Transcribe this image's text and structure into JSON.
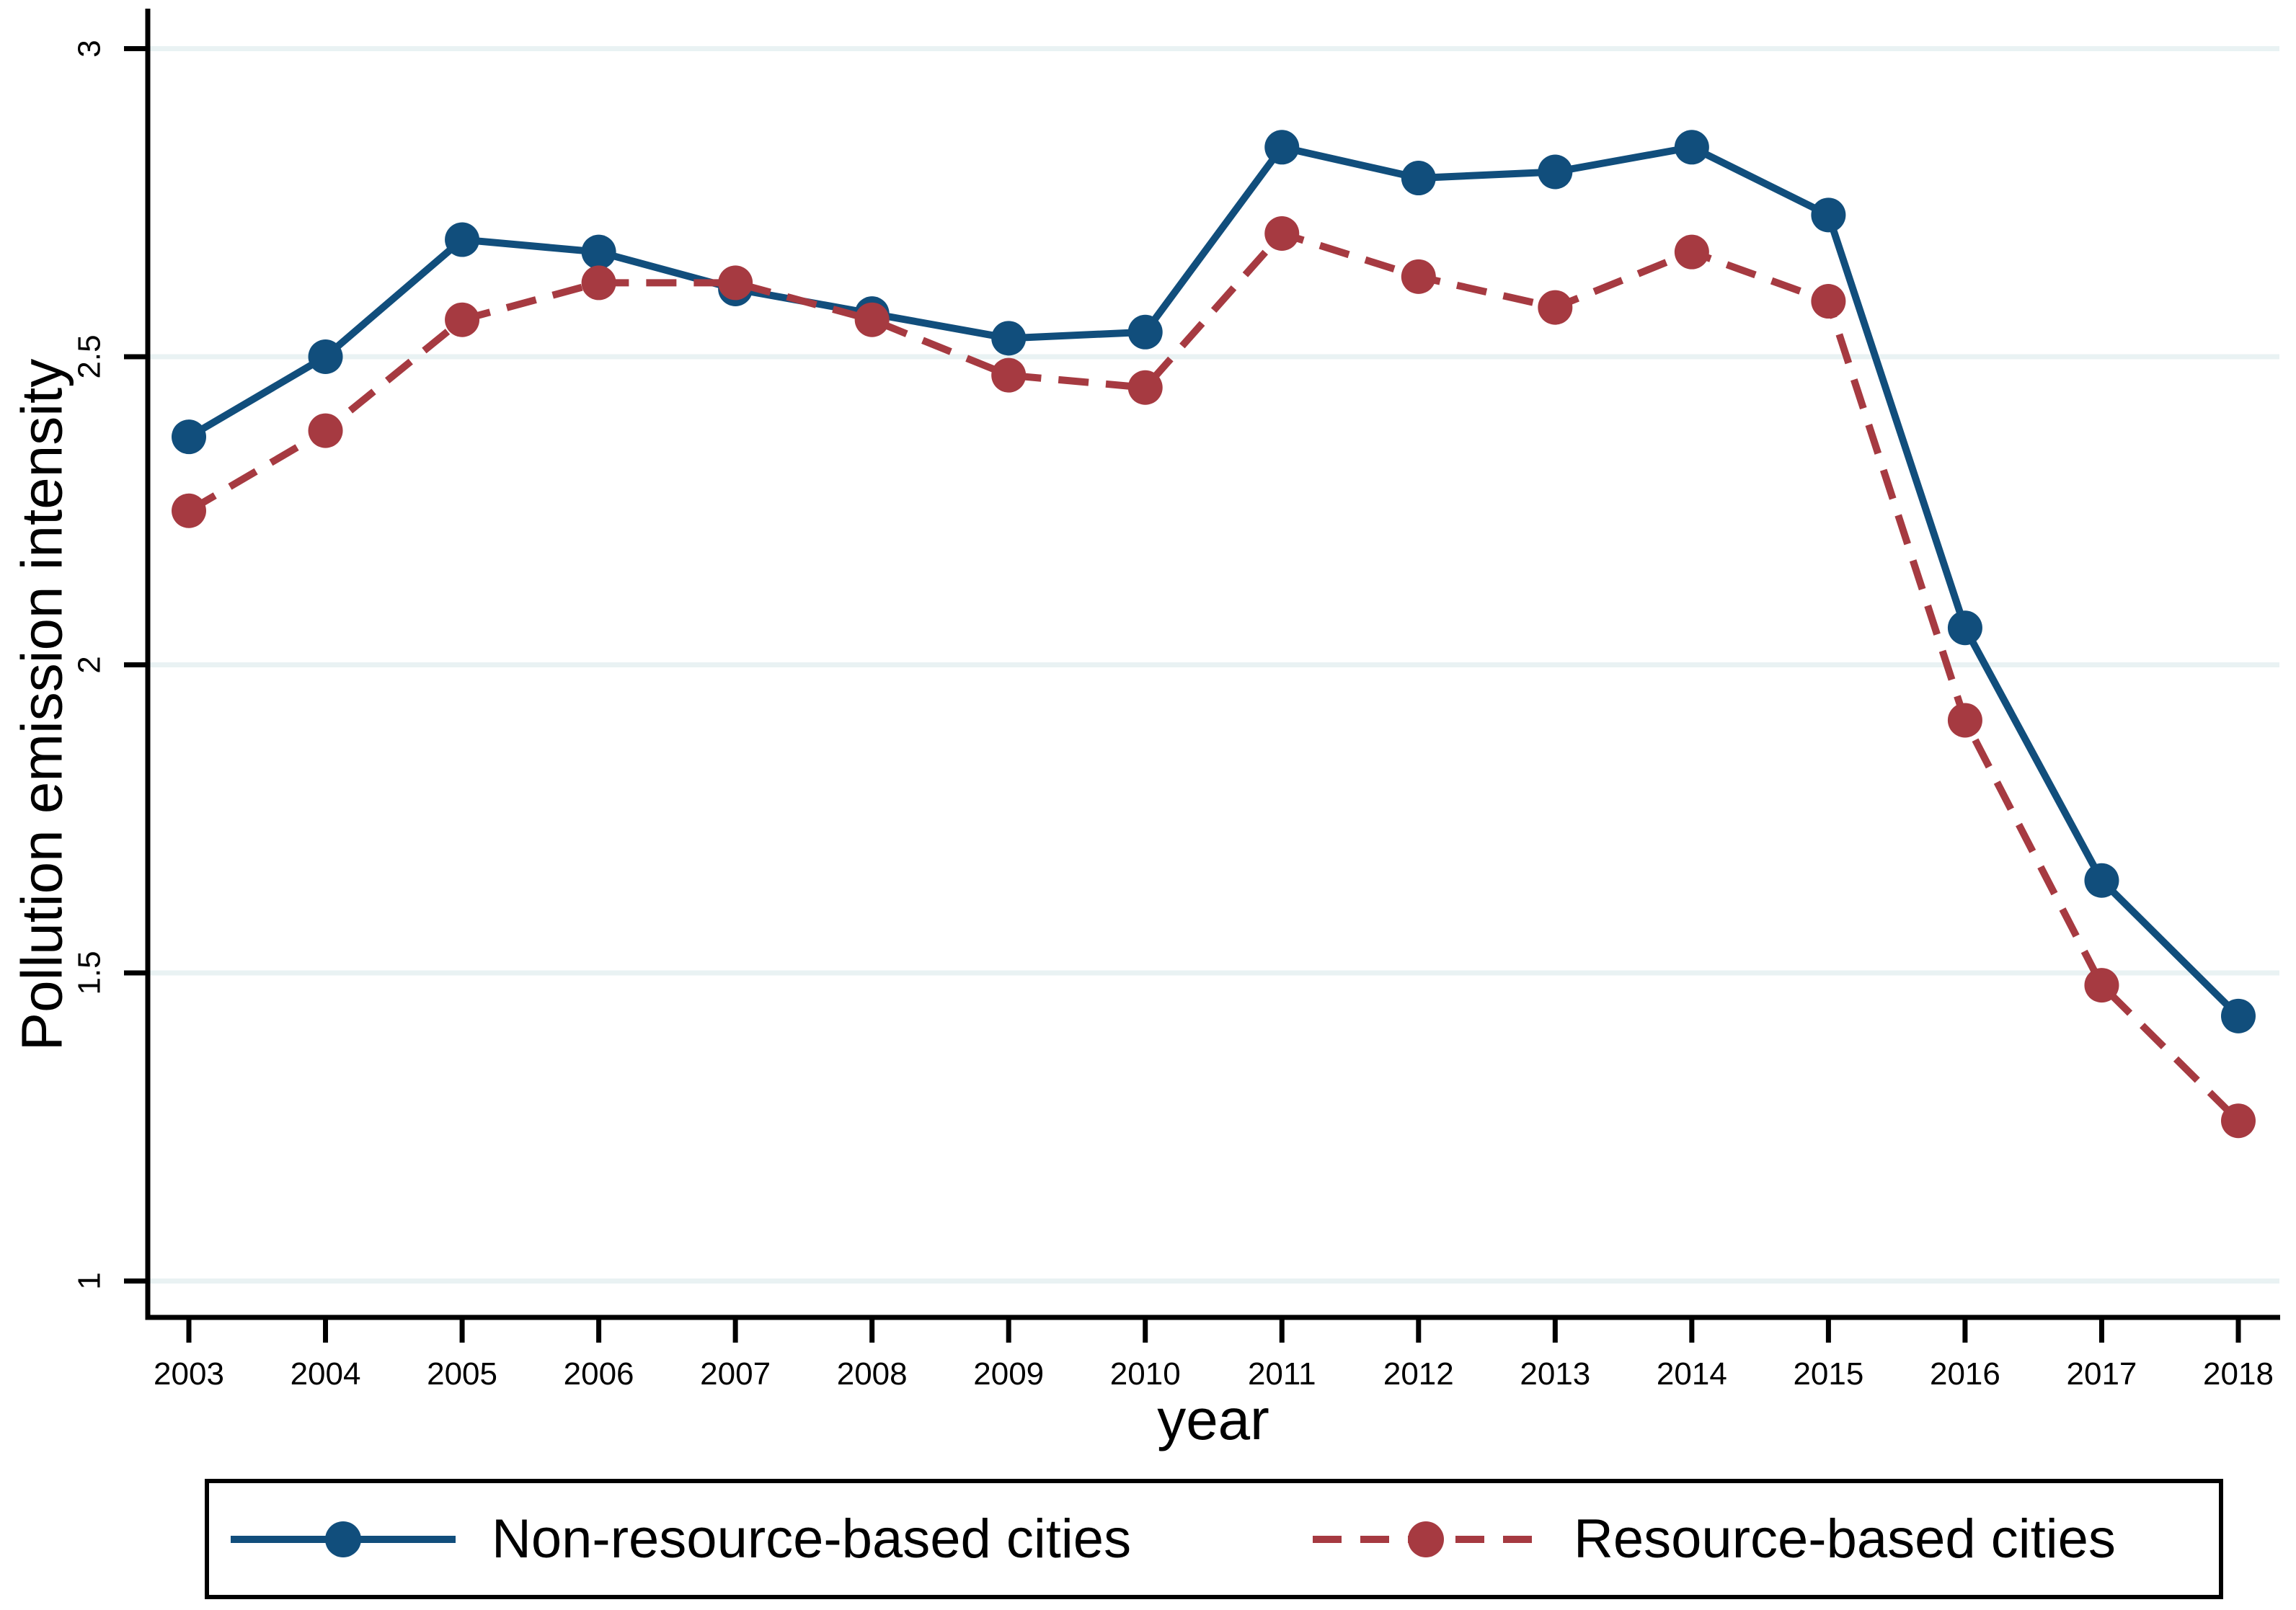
{
  "axes": {
    "y_title": "Pollution emission intensity",
    "x_title": "year"
  },
  "legend": {
    "items": [
      {
        "label": "Non-resource-based cities"
      },
      {
        "label": "Resource-based cities"
      }
    ]
  },
  "colors": {
    "navy": "#114e7c",
    "maroon": "#a63a41",
    "grid": "#e9f2f3",
    "axis": "#000000",
    "background": "#ffffff"
  },
  "chart_data": {
    "type": "line",
    "title": "",
    "xlabel": "year",
    "ylabel": "Pollution emission intensity",
    "x": [
      2003,
      2004,
      2005,
      2006,
      2007,
      2008,
      2009,
      2010,
      2011,
      2012,
      2013,
      2014,
      2015,
      2016,
      2017,
      2018
    ],
    "x_tick_labels": [
      "2003",
      "2004",
      "2005",
      "2006",
      "2007",
      "2008",
      "2009",
      "2010",
      "2011",
      "2012",
      "2013",
      "2014",
      "2015",
      "2016",
      "2017",
      "2018"
    ],
    "y_ticks": [
      1,
      1.5,
      2,
      2.5,
      3
    ],
    "y_tick_labels": [
      "1",
      "1.5",
      "2",
      "2.5",
      "3"
    ],
    "ylim": [
      0.94,
      3.08
    ],
    "xlim": [
      2002.7,
      2018.3
    ],
    "grid": "horizontal",
    "legend_position": "bottom",
    "series": [
      {
        "name": "Non-resource-based cities",
        "color": "#114e7c",
        "dash": "solid",
        "marker": "circle",
        "values": [
          2.37,
          2.5,
          2.69,
          2.67,
          2.61,
          2.57,
          2.53,
          2.54,
          2.84,
          2.79,
          2.8,
          2.84,
          2.73,
          2.06,
          1.65,
          1.43
        ]
      },
      {
        "name": "Resource-based cities",
        "color": "#a63a41",
        "dash": "dashed",
        "marker": "circle",
        "values": [
          2.25,
          2.38,
          2.56,
          2.62,
          2.62,
          2.56,
          2.47,
          2.45,
          2.7,
          2.63,
          2.58,
          2.67,
          2.59,
          1.91,
          1.48,
          1.26
        ]
      }
    ]
  }
}
